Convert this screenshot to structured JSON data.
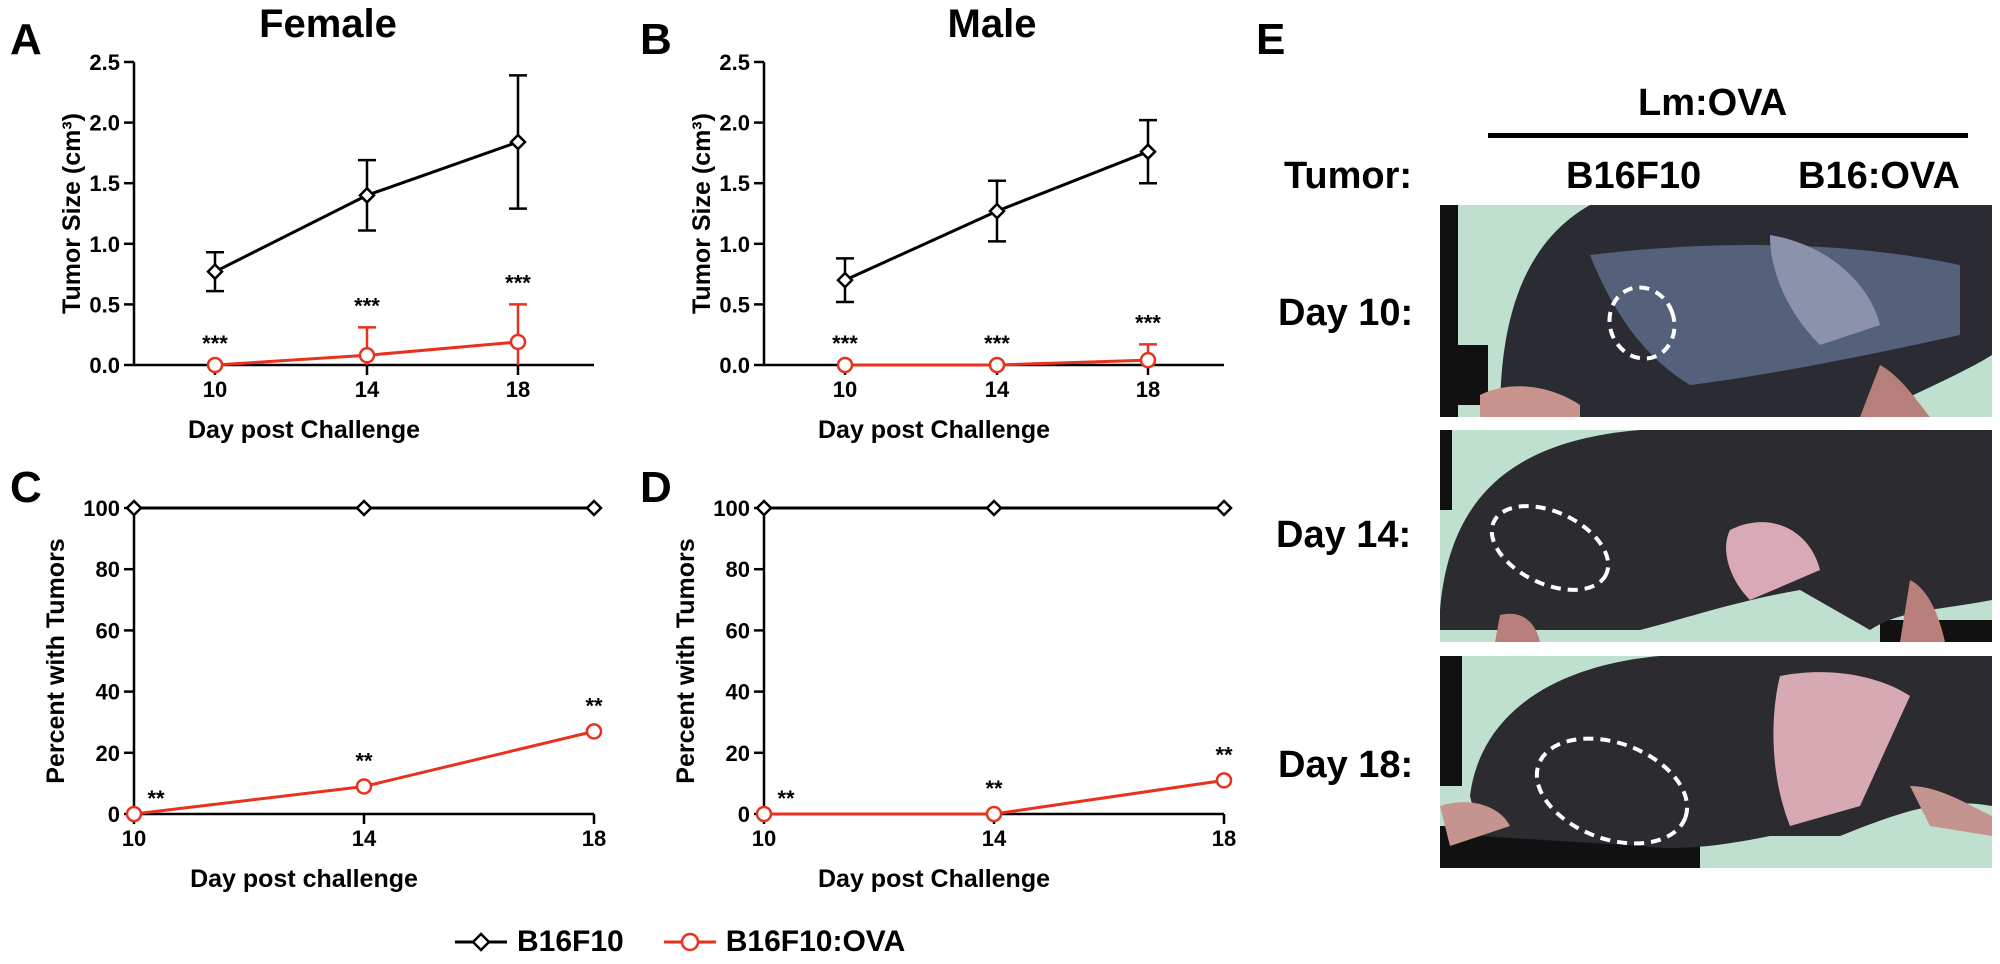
{
  "panel_letters": {
    "A": "A",
    "B": "B",
    "C": "C",
    "D": "D",
    "E": "E"
  },
  "titles": {
    "female": "Female",
    "male": "Male"
  },
  "legend": [
    {
      "label": "B16F10",
      "color": "#000000",
      "marker": "diamond-icon"
    },
    {
      "label": "B16F10:OVA",
      "color": "#e8321e",
      "marker": "circle-icon"
    }
  ],
  "panel_e": {
    "header": "Lm:OVA",
    "row_label_header": "Tumor:",
    "columns": [
      "B16F10",
      "B16:OVA"
    ],
    "rows": [
      "Day 10:",
      "Day 14:",
      "Day 18:"
    ]
  },
  "chart_data": [
    {
      "panel": "A",
      "type": "line",
      "title": "Female",
      "xlabel": "Day post Challenge",
      "ylabel": "Tumor Size (cm³)",
      "x": [
        10,
        14,
        18
      ],
      "ylim": [
        0,
        2.5
      ],
      "yticks": [
        "0.0",
        "0.5",
        "1.0",
        "1.5",
        "2.0",
        "2.5"
      ],
      "series": [
        {
          "name": "B16F10",
          "color": "#000000",
          "marker": "diamond",
          "values": [
            0.77,
            1.4,
            1.84
          ],
          "error": [
            0.16,
            0.29,
            0.55
          ]
        },
        {
          "name": "B16F10:OVA",
          "color": "#e8321e",
          "marker": "circle",
          "values": [
            0.0,
            0.08,
            0.19
          ],
          "error": [
            0,
            0.23,
            0.31
          ],
          "annotations": [
            "***",
            "***",
            "***"
          ]
        }
      ]
    },
    {
      "panel": "B",
      "type": "line",
      "title": "Male",
      "xlabel": "Day post Challenge",
      "ylabel": "Tumor Size (cm³)",
      "x": [
        10,
        14,
        18
      ],
      "ylim": [
        0,
        2.5
      ],
      "yticks": [
        "0.0",
        "0.5",
        "1.0",
        "1.5",
        "2.0",
        "2.5"
      ],
      "series": [
        {
          "name": "B16F10",
          "color": "#000000",
          "marker": "diamond",
          "values": [
            0.7,
            1.27,
            1.76
          ],
          "error": [
            0.18,
            0.25,
            0.26
          ]
        },
        {
          "name": "B16F10:OVA",
          "color": "#e8321e",
          "marker": "circle",
          "values": [
            0.0,
            0.0,
            0.04
          ],
          "error": [
            0,
            0,
            0.13
          ],
          "annotations": [
            "***",
            "***",
            "***"
          ]
        }
      ]
    },
    {
      "panel": "C",
      "type": "line",
      "xlabel": "Day post challenge",
      "ylabel": "Percent with Tumors",
      "x": [
        10,
        14,
        18
      ],
      "ylim": [
        0,
        100
      ],
      "yticks": [
        "0",
        "20",
        "40",
        "60",
        "80",
        "100"
      ],
      "series": [
        {
          "name": "B16F10",
          "color": "#000000",
          "marker": "diamond",
          "values": [
            100,
            100,
            100
          ]
        },
        {
          "name": "B16F10:OVA",
          "color": "#e8321e",
          "marker": "circle",
          "values": [
            0,
            9,
            27
          ],
          "annotations": [
            "**",
            "**",
            "**"
          ]
        }
      ]
    },
    {
      "panel": "D",
      "type": "line",
      "xlabel": "Day post Challenge",
      "ylabel": "Percent with Tumors",
      "x": [
        10,
        14,
        18
      ],
      "ylim": [
        0,
        100
      ],
      "yticks": [
        "0",
        "20",
        "40",
        "60",
        "80",
        "100"
      ],
      "series": [
        {
          "name": "B16F10",
          "color": "#000000",
          "marker": "diamond",
          "values": [
            100,
            100,
            100
          ]
        },
        {
          "name": "B16F10:OVA",
          "color": "#e8321e",
          "marker": "circle",
          "values": [
            0,
            0,
            11
          ],
          "annotations": [
            "**",
            "**",
            "**"
          ]
        }
      ]
    }
  ]
}
